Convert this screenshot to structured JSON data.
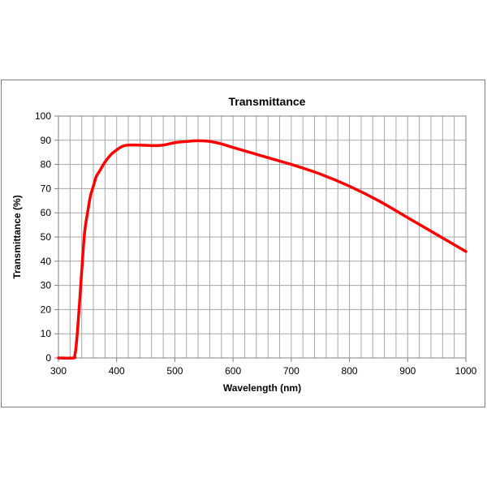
{
  "chart_data": {
    "type": "line",
    "title": "Transmittance",
    "xlabel": "Wavelength (nm)",
    "ylabel": "Transmittance (%)",
    "xlim": [
      300,
      1000
    ],
    "ylim": [
      0,
      100
    ],
    "x_ticks": [
      300,
      400,
      500,
      600,
      700,
      800,
      900,
      1000
    ],
    "y_ticks": [
      0,
      10,
      20,
      30,
      40,
      50,
      60,
      70,
      80,
      90,
      100
    ],
    "x_minor_step": 20,
    "grid": true,
    "legend": "none",
    "series": [
      {
        "color": "#ff0000",
        "x": [
          300,
          326,
          328,
          330,
          333,
          336,
          340,
          345,
          350,
          355,
          360,
          365,
          370,
          380,
          390,
          400,
          410,
          420,
          440,
          460,
          480,
          500,
          520,
          540,
          560,
          580,
          600,
          650,
          700,
          750,
          800,
          850,
          900,
          950,
          1000
        ],
        "y": [
          0,
          0,
          1,
          4,
          12,
          22,
          36,
          52,
          60,
          67,
          71,
          75,
          77,
          81,
          84,
          86,
          87.5,
          88,
          88,
          87.8,
          88,
          89,
          89.5,
          89.8,
          89.5,
          88.5,
          87,
          83.5,
          80,
          76,
          71,
          65,
          58,
          51,
          44
        ]
      }
    ]
  }
}
